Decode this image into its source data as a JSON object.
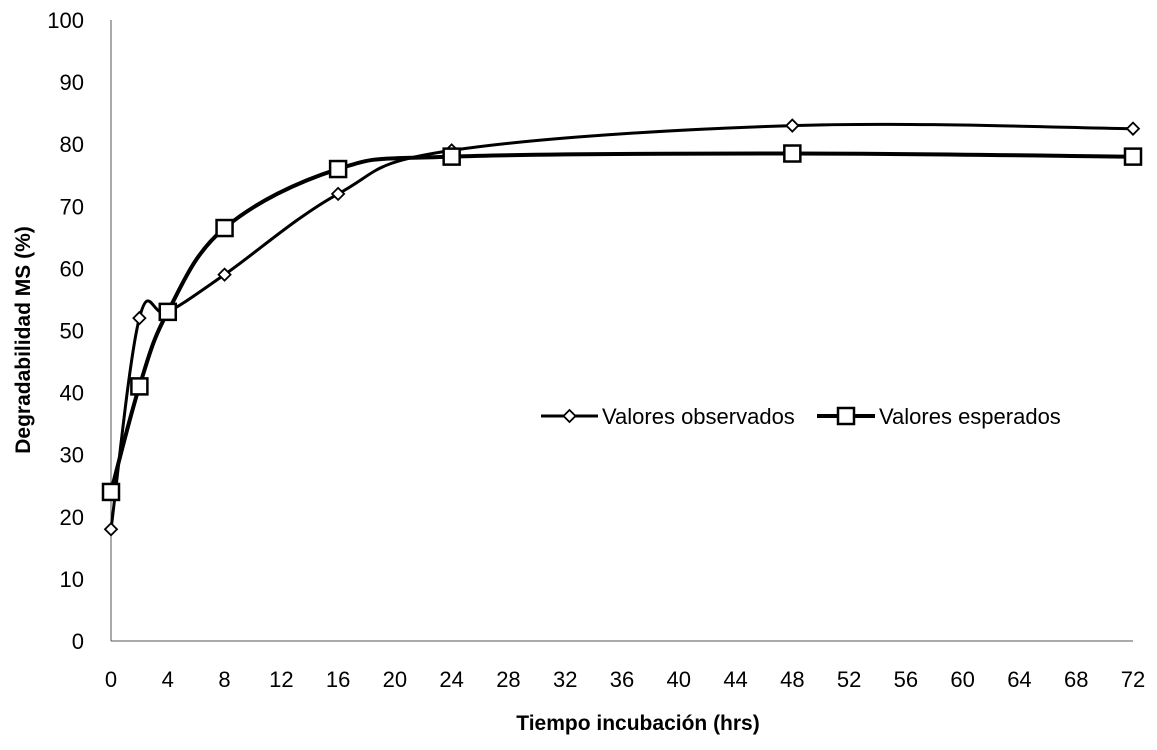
{
  "chart_data": {
    "type": "line",
    "title": "",
    "xlabel": "Tiempo incubación (hrs)",
    "ylabel": "Degradabilidad MS (%)",
    "xlim": [
      0,
      72
    ],
    "ylim": [
      0,
      100
    ],
    "x_ticks": [
      0,
      4,
      8,
      12,
      16,
      20,
      24,
      28,
      32,
      36,
      40,
      44,
      48,
      52,
      56,
      60,
      64,
      68,
      72
    ],
    "y_ticks": [
      0,
      10,
      20,
      30,
      40,
      50,
      60,
      70,
      80,
      90,
      100
    ],
    "grid": false,
    "legend_position": "center-right",
    "series": [
      {
        "name": "Valores observados",
        "marker": "diamond",
        "color": "#000000",
        "x": [
          0,
          2,
          4,
          8,
          16,
          24,
          48,
          72
        ],
        "y": [
          18,
          52,
          53,
          59,
          72,
          79,
          83,
          82.5
        ]
      },
      {
        "name": "Valores esperados",
        "marker": "square",
        "color": "#000000",
        "x": [
          0,
          2,
          4,
          8,
          16,
          24,
          48,
          72
        ],
        "y": [
          24,
          41,
          53,
          66.5,
          76,
          78,
          78.5,
          78
        ]
      }
    ]
  }
}
